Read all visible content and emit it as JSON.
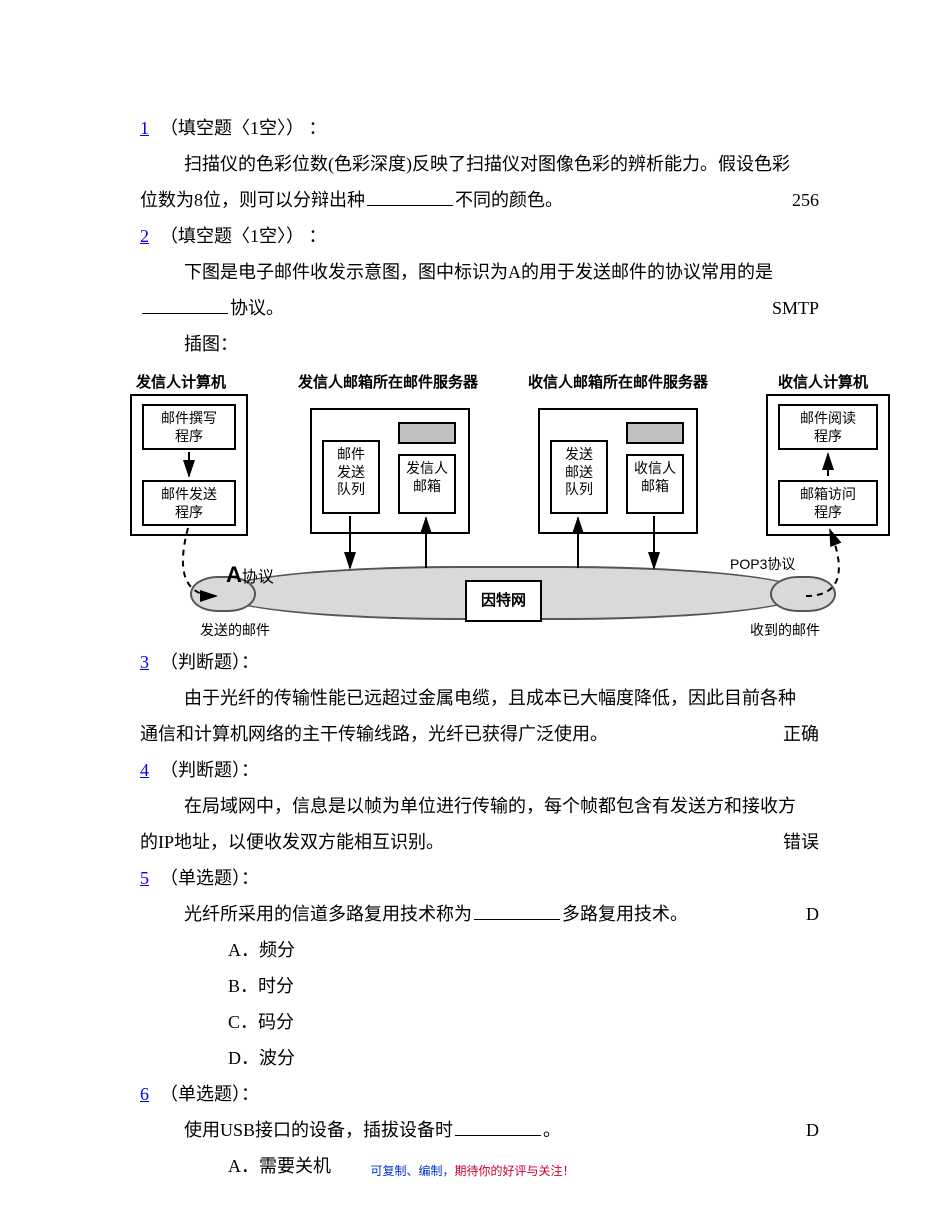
{
  "q1": {
    "num": "1",
    "type": "（填空题〈1空〉） ：",
    "text_a": "扫描仪的色彩位数(色彩深度)反映了扫描仪对图像色彩的辨析能力。假设色彩",
    "text_b_pre": "位数为8位，则可以分辩出种",
    "text_b_post": "不同的颜色。",
    "answer": "256"
  },
  "q2": {
    "num": "2",
    "type": "（填空题〈1空〉） ：",
    "text_a": "下图是电子邮件收发示意图，图中标识为A的用于发送邮件的协议常用的是",
    "text_b_post": "协议。",
    "answer": "SMTP",
    "caption": "插图："
  },
  "diagram": {
    "title_sender_pc": "发信人计算机",
    "title_sender_srv": "发信人邮箱所在邮件服务器",
    "title_recv_srv": "收信人邮箱所在邮件服务器",
    "title_recv_pc": "收信人计算机",
    "box_compose": "邮件撰写\n程序",
    "box_send_prog": "邮件发送\n程序",
    "box_send_queue": "邮件\n发送\n队列",
    "box_sender_mbox": "发信人\n邮箱",
    "box_fwd_queue": "发送\n邮送\n队列",
    "box_recv_mbox": "收信人\n邮箱",
    "box_read_prog": "邮件阅读\n程序",
    "box_access_prog": "邮箱访问\n程序",
    "label_A": "A",
    "label_A_suffix": "协议",
    "label_sent_mail": "发送的邮件",
    "label_internet": "因特网",
    "label_pop3": "POP3协议",
    "label_recv_mail": "收到的邮件"
  },
  "q3": {
    "num": "3",
    "type": "（判断题）：",
    "text_a": "由于光纤的传输性能已远超过金属电缆，且成本已大幅度降低，因此目前各种",
    "text_b": "通信和计算机网络的主干传输线路，光纤已获得广泛使用。",
    "answer": "正确"
  },
  "q4": {
    "num": "4",
    "type": "（判断题）：",
    "text_a": "在局域网中，信息是以帧为单位进行传输的，每个帧都包含有发送方和接收方",
    "text_b": "的IP地址，以便收发双方能相互识别。",
    "answer": "错误"
  },
  "q5": {
    "num": "5",
    "type": "（单选题）：",
    "stem_pre": "光纤所采用的信道多路复用技术称为",
    "stem_post": "多路复用技术。",
    "answer": "D",
    "opts": {
      "A": "频分",
      "B": "时分",
      "C": "码分",
      "D": "波分"
    }
  },
  "q6": {
    "num": "6",
    "type": "（单选题）：",
    "stem_pre": "使用USB接口的设备，插拔设备时",
    "stem_post": "。",
    "answer": "D",
    "opts": {
      "A": "需要关机"
    }
  },
  "footer": {
    "part1": "可复制、编制，",
    "part2": "期待你的好评与关注！"
  },
  "colors": {
    "link": "#0000ee",
    "footer_blue": "#0033cc",
    "footer_red": "#cc0033",
    "text": "#000000",
    "bg": "#ffffff"
  }
}
